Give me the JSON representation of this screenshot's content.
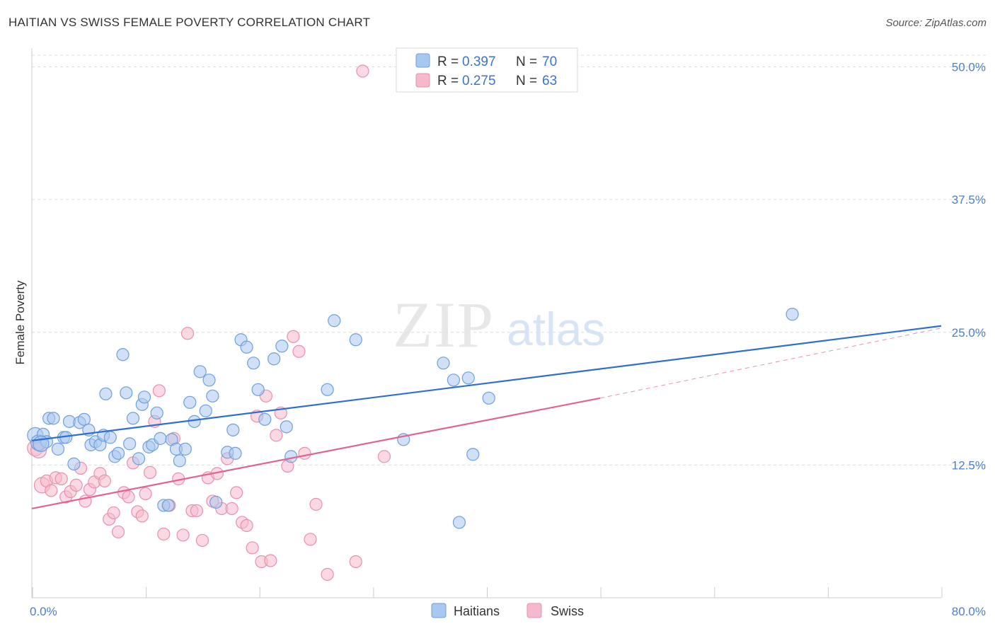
{
  "header": {
    "title": "HAITIAN VS SWISS FEMALE POVERTY CORRELATION CHART",
    "source": "Source: ZipAtlas.com"
  },
  "watermark": {
    "zip": "ZIP",
    "atlas": "atlas"
  },
  "legend": {
    "r_label": "R =",
    "n_label": "N =",
    "haitians": {
      "r": "0.397",
      "n": "70"
    },
    "swiss": {
      "r": "0.275",
      "n": "63"
    }
  },
  "colors": {
    "haitians_fill": "#a9c8f0",
    "haitians_stroke": "#6f9fdc",
    "haitians_line": "#2f6fd0",
    "swiss_fill": "#f5b9cc",
    "swiss_stroke": "#e890ad",
    "swiss_line": "#e0648f",
    "axis_text": "#4a7fcf",
    "grid": "#dcdcdc"
  },
  "chart_data": {
    "type": "scatter",
    "title": "HAITIAN VS SWISS FEMALE POVERTY CORRELATION CHART",
    "xlabel": "",
    "ylabel": "Female Poverty",
    "xlim": [
      0,
      80
    ],
    "ylim": [
      0,
      52.5
    ],
    "x_tick_labels": [
      "0.0%",
      "80.0%"
    ],
    "y_tick_values": [
      12.5,
      25.0,
      37.5,
      50.0
    ],
    "y_tick_labels": [
      "12.5%",
      "25.0%",
      "37.5%",
      "50.0%"
    ],
    "grid": true,
    "legend_position": "top-center",
    "bottom_legend": [
      "Haitians",
      "Swiss"
    ],
    "series": [
      {
        "name": "Haitians",
        "r": 0.397,
        "n": 70,
        "trend": {
          "x": [
            0,
            80
          ],
          "y": [
            14.8,
            25.6
          ]
        },
        "points": [
          [
            0.3,
            15.3
          ],
          [
            0.6,
            14.6
          ],
          [
            1.0,
            15.4
          ],
          [
            1.3,
            14.7
          ],
          [
            1.5,
            16.9
          ],
          [
            1.9,
            16.9
          ],
          [
            2.3,
            14.0
          ],
          [
            2.8,
            15.1
          ],
          [
            3.0,
            15.1
          ],
          [
            3.3,
            16.6
          ],
          [
            3.7,
            12.6
          ],
          [
            4.2,
            16.5
          ],
          [
            4.6,
            16.8
          ],
          [
            5.0,
            15.8
          ],
          [
            5.2,
            14.4
          ],
          [
            5.6,
            14.7
          ],
          [
            6.0,
            14.4
          ],
          [
            6.3,
            15.3
          ],
          [
            6.5,
            19.2
          ],
          [
            6.9,
            15.1
          ],
          [
            7.3,
            13.3
          ],
          [
            7.6,
            13.6
          ],
          [
            8.0,
            22.9
          ],
          [
            8.3,
            19.3
          ],
          [
            8.6,
            14.5
          ],
          [
            8.9,
            16.9
          ],
          [
            9.4,
            13.1
          ],
          [
            9.7,
            18.2
          ],
          [
            9.9,
            18.9
          ],
          [
            10.3,
            14.2
          ],
          [
            10.6,
            14.4
          ],
          [
            11.0,
            17.4
          ],
          [
            11.3,
            15.0
          ],
          [
            11.6,
            8.7
          ],
          [
            12.0,
            8.7
          ],
          [
            12.3,
            14.9
          ],
          [
            12.7,
            14.0
          ],
          [
            13.0,
            12.9
          ],
          [
            13.5,
            14.0
          ],
          [
            13.9,
            18.4
          ],
          [
            14.3,
            16.6
          ],
          [
            14.8,
            21.3
          ],
          [
            15.3,
            17.6
          ],
          [
            15.6,
            20.5
          ],
          [
            15.9,
            19.0
          ],
          [
            16.2,
            9.0
          ],
          [
            17.2,
            13.7
          ],
          [
            17.7,
            15.8
          ],
          [
            17.9,
            13.6
          ],
          [
            18.4,
            24.3
          ],
          [
            18.9,
            23.6
          ],
          [
            19.5,
            22.1
          ],
          [
            19.9,
            19.6
          ],
          [
            20.5,
            16.8
          ],
          [
            21.3,
            22.5
          ],
          [
            22.0,
            23.7
          ],
          [
            22.4,
            16.1
          ],
          [
            22.8,
            13.3
          ],
          [
            26.0,
            19.6
          ],
          [
            26.6,
            26.1
          ],
          [
            28.5,
            24.3
          ],
          [
            32.7,
            14.9
          ],
          [
            36.2,
            22.1
          ],
          [
            37.1,
            20.5
          ],
          [
            37.6,
            7.1
          ],
          [
            38.4,
            20.7
          ],
          [
            38.8,
            13.5
          ],
          [
            40.2,
            18.8
          ],
          [
            66.9,
            26.7
          ],
          [
            0.8,
            14.5
          ]
        ]
      },
      {
        "name": "Swiss",
        "r": 0.275,
        "n": 63,
        "trend": {
          "x": [
            0,
            50
          ],
          "y": [
            8.4,
            18.8
          ]
        },
        "trend_dashed_to": {
          "x": 80,
          "y": 25.4
        },
        "points": [
          [
            0.3,
            14.1
          ],
          [
            0.9,
            10.6
          ],
          [
            1.3,
            11.0
          ],
          [
            1.7,
            10.1
          ],
          [
            2.1,
            11.3
          ],
          [
            2.6,
            11.2
          ],
          [
            3.0,
            9.5
          ],
          [
            3.4,
            10.0
          ],
          [
            3.9,
            10.6
          ],
          [
            4.3,
            12.2
          ],
          [
            4.7,
            9.1
          ],
          [
            5.1,
            10.2
          ],
          [
            5.5,
            10.9
          ],
          [
            6.0,
            11.7
          ],
          [
            6.4,
            11.0
          ],
          [
            6.8,
            7.4
          ],
          [
            7.2,
            8.0
          ],
          [
            7.6,
            6.2
          ],
          [
            8.1,
            9.9
          ],
          [
            8.5,
            9.5
          ],
          [
            8.9,
            12.7
          ],
          [
            9.3,
            8.1
          ],
          [
            9.7,
            7.7
          ],
          [
            10.0,
            9.8
          ],
          [
            10.4,
            11.8
          ],
          [
            10.8,
            16.6
          ],
          [
            11.2,
            19.5
          ],
          [
            11.6,
            6.0
          ],
          [
            12.1,
            8.7
          ],
          [
            12.5,
            15.0
          ],
          [
            12.9,
            11.2
          ],
          [
            13.3,
            5.9
          ],
          [
            13.7,
            24.9
          ],
          [
            14.1,
            8.2
          ],
          [
            14.5,
            8.2
          ],
          [
            15.0,
            5.4
          ],
          [
            15.5,
            11.3
          ],
          [
            15.9,
            9.1
          ],
          [
            16.3,
            11.7
          ],
          [
            16.7,
            8.4
          ],
          [
            17.2,
            13.1
          ],
          [
            17.6,
            8.4
          ],
          [
            18.0,
            9.9
          ],
          [
            18.5,
            7.1
          ],
          [
            18.9,
            6.8
          ],
          [
            19.4,
            4.7
          ],
          [
            19.8,
            17.1
          ],
          [
            20.2,
            3.4
          ],
          [
            20.6,
            19.0
          ],
          [
            21.0,
            3.5
          ],
          [
            21.5,
            15.3
          ],
          [
            21.9,
            17.4
          ],
          [
            22.5,
            12.4
          ],
          [
            23.0,
            24.6
          ],
          [
            23.5,
            23.2
          ],
          [
            24.0,
            13.6
          ],
          [
            24.5,
            5.5
          ],
          [
            25.0,
            8.8
          ],
          [
            26.0,
            2.2
          ],
          [
            28.5,
            3.4
          ],
          [
            29.1,
            49.6
          ],
          [
            31.0,
            13.3
          ],
          [
            0.6,
            13.9
          ]
        ]
      }
    ]
  }
}
